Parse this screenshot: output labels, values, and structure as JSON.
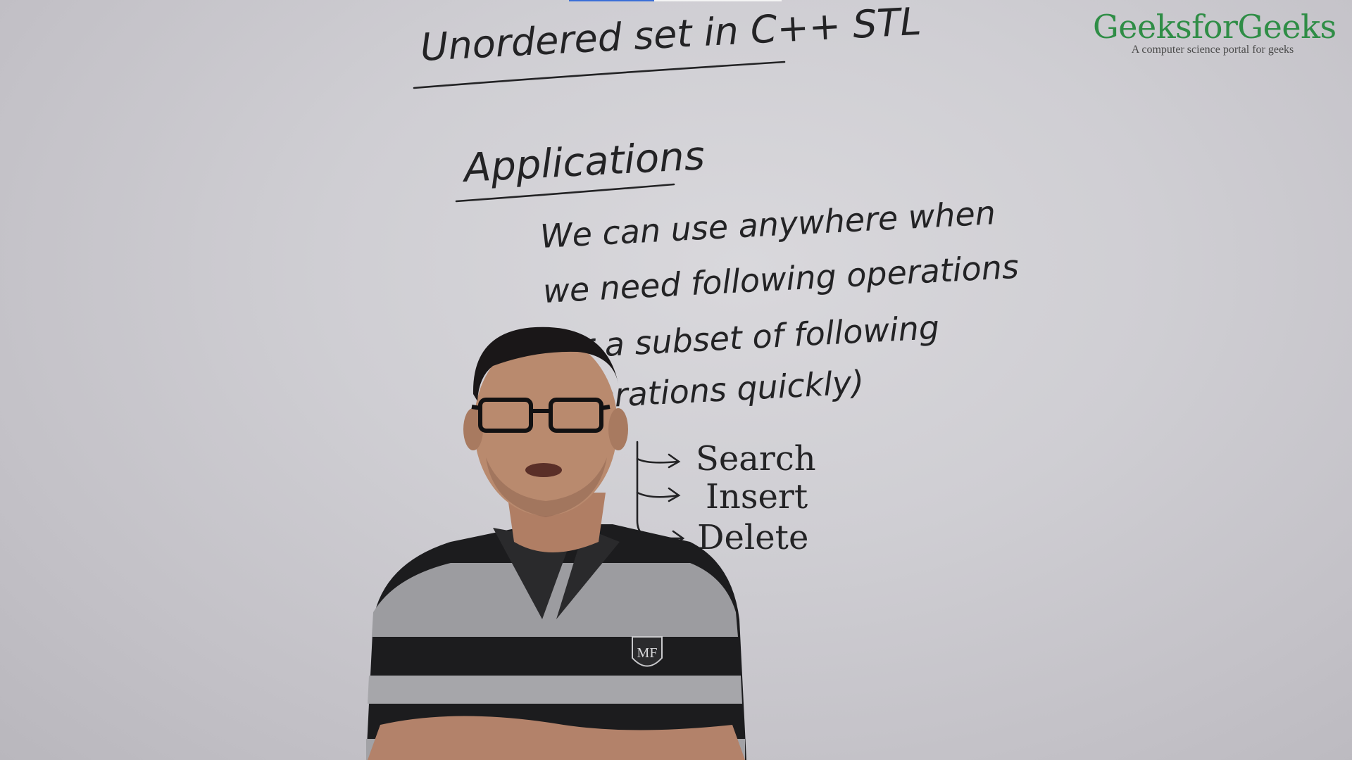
{
  "video": {
    "progress_fraction": 0.4
  },
  "logo": {
    "name": "GeeksforGeeks",
    "tagline": "A computer science portal for geeks",
    "color": "#2f8d46"
  },
  "board": {
    "title": "Unordered set in C++ STL",
    "heading": "Applications",
    "line1": "We can use anywhere when",
    "line2": "we need following operations",
    "line3": "(or a subset of following",
    "line4": "operations quickly)",
    "operations": [
      "Search",
      "Insert",
      "Delete"
    ]
  },
  "presenter": {
    "shirt_badge": "MF"
  }
}
